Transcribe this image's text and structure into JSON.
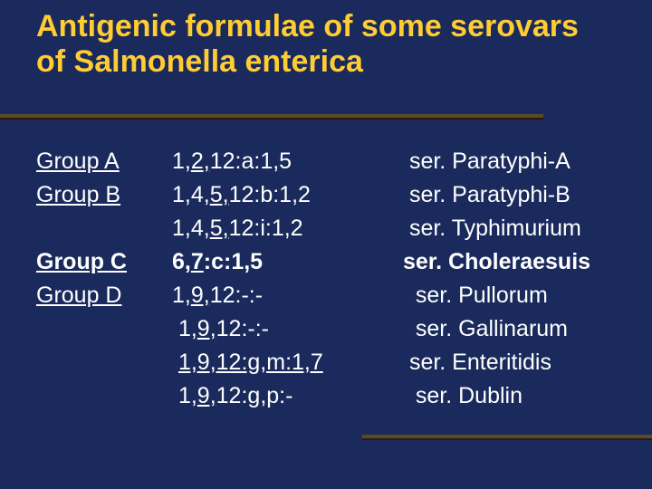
{
  "title": "Antigenic formulae of some serovars of Salmonella enterica",
  "colors": {
    "background": "#1a2a5c",
    "title": "#ffcc33",
    "text": "#ffffff",
    "rule": "#5a4a2a"
  },
  "typography": {
    "title_fontsize": 34,
    "body_fontsize": 25,
    "font_family": "Arial"
  },
  "rows": [
    {
      "group": "Group A",
      "formula_html": "1,<span class='u'>2,</span>12:a:1,5",
      "serovar": " ser. Paratyphi-A",
      "bold": false
    },
    {
      "group": "Group B",
      "formula_html": "1,4,<span class='u'>5,</span>12:b:1,2",
      "serovar": " ser. Paratyphi-B",
      "bold": false
    },
    {
      "group": "",
      "formula_html": "1,4,<span class='u'>5,</span>12:i:1,2",
      "serovar": " ser. Typhimurium",
      "bold": false
    },
    {
      "group": "Group C",
      "formula_html": "6,<span class='u'>7</span>:c:1,5",
      "serovar": "ser. Choleraesuis",
      "bold": true
    },
    {
      "group": "Group D",
      "formula_html": "1,<span class='u'>9,</span>12:-:-",
      "serovar": "  ser. Pullorum",
      "bold": false
    },
    {
      "group": "",
      "formula_html": " 1,<span class='u'>9,</span>12:-:-",
      "serovar": "  ser. Gallinarum",
      "bold": false
    },
    {
      "group": "",
      "formula_html": " <span class='u'>1,9,12:g,m:1,7</span>",
      "serovar": " ser. Enteritidis",
      "bold": false
    },
    {
      "group": "",
      "formula_html": " 1,<span class='u'>9,</span>12:g,p:-",
      "serovar": "  ser. Dublin",
      "bold": false
    }
  ]
}
